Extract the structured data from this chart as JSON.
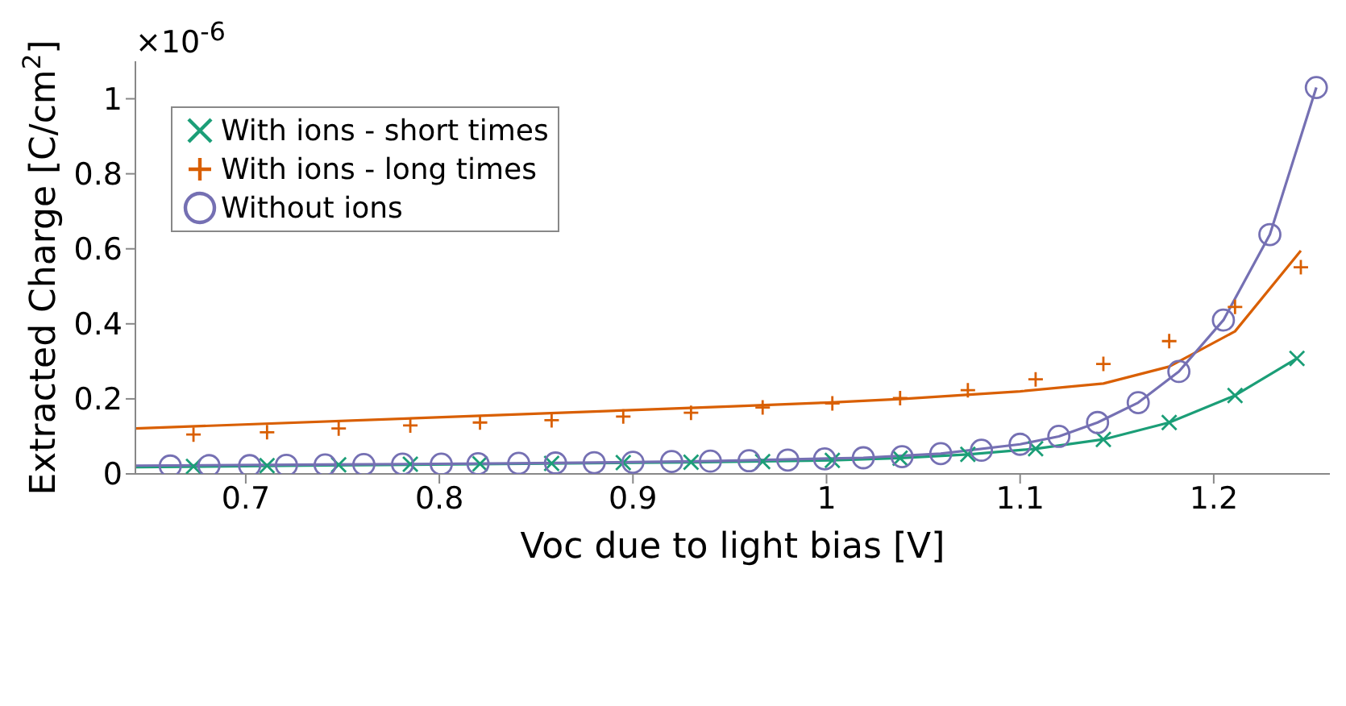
{
  "chart_data": {
    "type": "scatter",
    "xlabel": "Voc due to light bias [V]",
    "ylabel": "Extracted Charge [C/cm$^{2}$]",
    "annotations": [
      "×10$^{-6}$"
    ],
    "xlim": [
      0.643,
      1.26
    ],
    "ylim": [
      0,
      1.1
    ],
    "xticks": [
      0.7,
      0.8,
      0.9,
      1,
      1.1,
      1.2
    ],
    "yticks": [
      0,
      0.2,
      0.4,
      0.6,
      0.8,
      1
    ],
    "grid": false,
    "legend": "top left",
    "series": [
      {
        "name": "With ions - short times",
        "color": "#1b9e77",
        "marker": "cross",
        "x": [
          0.673,
          0.711,
          0.748,
          0.785,
          0.821,
          0.858,
          0.895,
          0.93,
          0.967,
          1.003,
          1.038,
          1.073,
          1.108,
          1.143,
          1.177,
          1.211,
          1.243
        ],
        "values": [
          0.02,
          0.022,
          0.024,
          0.026,
          0.027,
          0.028,
          0.03,
          0.031,
          0.033,
          0.036,
          0.042,
          0.052,
          0.067,
          0.092,
          0.137,
          0.209,
          0.308
        ]
      },
      {
        "name": "With ions - long times",
        "color": "#d95f02",
        "marker": "plus",
        "x": [
          0.673,
          0.711,
          0.748,
          0.785,
          0.821,
          0.858,
          0.895,
          0.93,
          0.967,
          1.003,
          1.038,
          1.073,
          1.108,
          1.143,
          1.177,
          1.211,
          1.245
        ],
        "values": [
          0.105,
          0.111,
          0.121,
          0.129,
          0.137,
          0.143,
          0.153,
          0.163,
          0.177,
          0.188,
          0.202,
          0.223,
          0.252,
          0.293,
          0.354,
          0.445,
          0.551
        ]
      },
      {
        "name": "Without ions",
        "color": "#7570b3",
        "marker": "circle",
        "x": [
          0.661,
          0.681,
          0.702,
          0.721,
          0.741,
          0.761,
          0.781,
          0.801,
          0.82,
          0.841,
          0.86,
          0.88,
          0.9,
          0.92,
          0.94,
          0.96,
          0.98,
          0.999,
          1.019,
          1.039,
          1.059,
          1.08,
          1.1,
          1.12,
          1.14,
          1.161,
          1.182,
          1.205,
          1.229,
          1.253
        ],
        "values": [
          0.021,
          0.022,
          0.022,
          0.023,
          0.024,
          0.025,
          0.026,
          0.026,
          0.027,
          0.028,
          0.029,
          0.03,
          0.031,
          0.033,
          0.034,
          0.035,
          0.037,
          0.04,
          0.043,
          0.046,
          0.054,
          0.063,
          0.079,
          0.1,
          0.137,
          0.19,
          0.273,
          0.41,
          0.638,
          1.03
        ]
      },
      {
        "type": "line",
        "color": "#1b9e77",
        "marker": "none",
        "x": [
          0.643,
          0.73,
          0.82,
          0.93,
          1.003,
          1.038,
          1.073,
          1.108,
          1.143,
          1.177,
          1.211,
          1.243
        ],
        "values": [
          0.018,
          0.022,
          0.026,
          0.031,
          0.036,
          0.042,
          0.052,
          0.067,
          0.092,
          0.137,
          0.209,
          0.308
        ]
      },
      {
        "type": "line",
        "color": "#d95f02",
        "marker": "none",
        "x": [
          0.643,
          0.952,
          1.0,
          1.04,
          1.1,
          1.143,
          1.177,
          1.211,
          1.245
        ],
        "values": [
          0.121,
          0.18,
          0.19,
          0.2,
          0.22,
          0.241,
          0.286,
          0.38,
          0.595
        ]
      },
      {
        "type": "line",
        "color": "#7570b3",
        "marker": "none",
        "x": [
          0.643,
          0.741,
          0.84,
          0.94,
          1.019,
          1.059,
          1.1,
          1.12,
          1.14,
          1.161,
          1.182,
          1.205,
          1.229,
          1.253
        ],
        "values": [
          0.022,
          0.025,
          0.028,
          0.034,
          0.043,
          0.054,
          0.079,
          0.1,
          0.137,
          0.19,
          0.273,
          0.41,
          0.638,
          1.03
        ]
      }
    ]
  }
}
